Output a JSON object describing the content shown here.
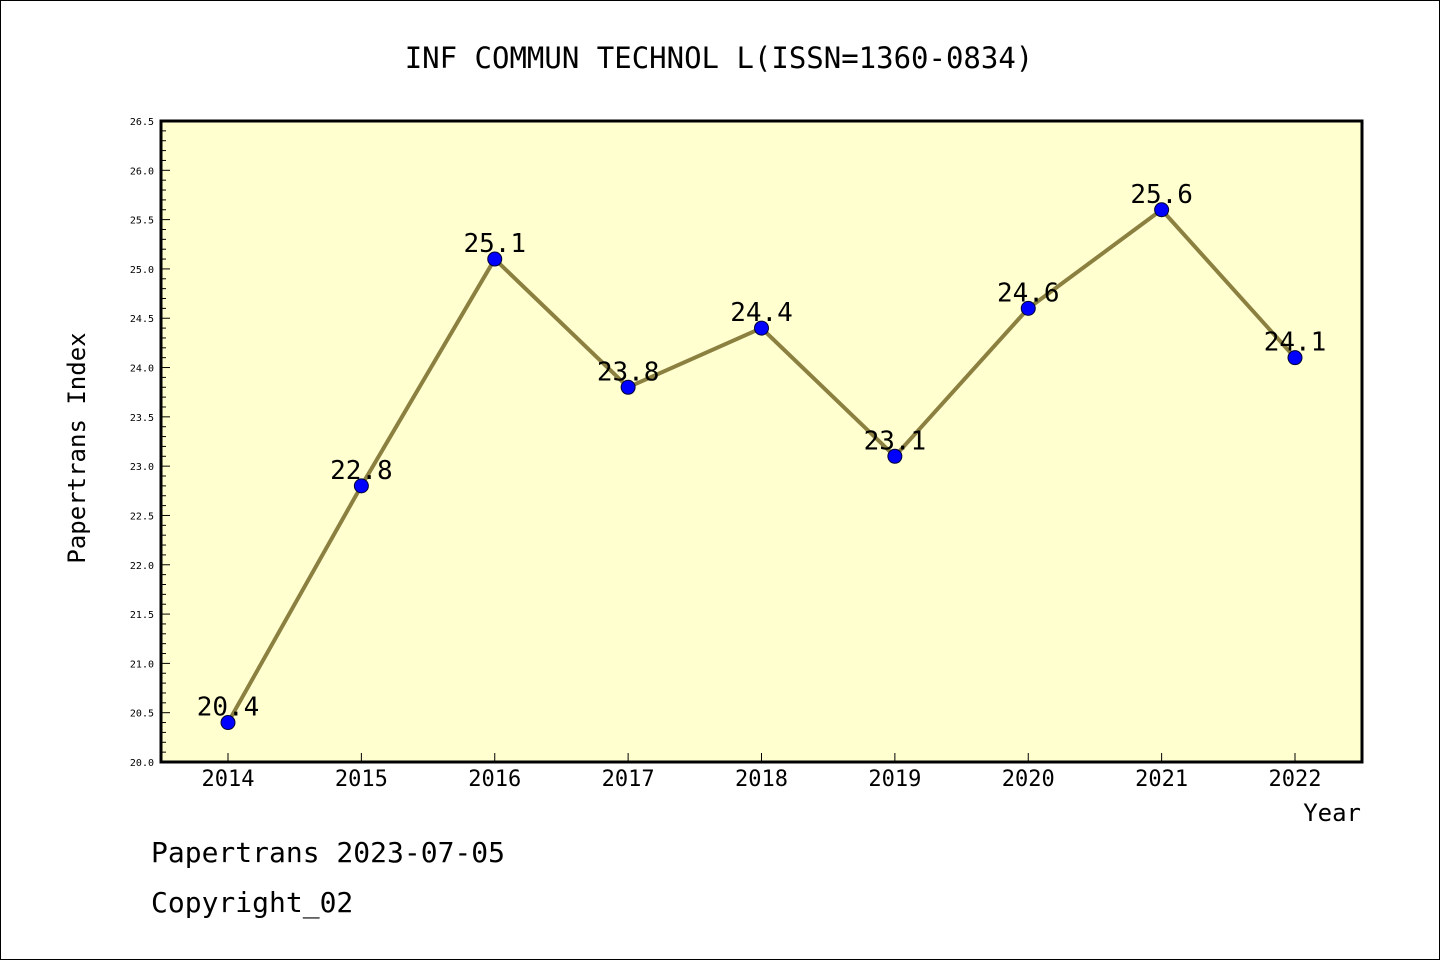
{
  "footer": {
    "line1": "Papertrans 2023-07-05",
    "line2": "Copyright_02"
  },
  "colors": {
    "plot_background": "#ffffd0",
    "line": "#8b8040",
    "marker": "#0000ff",
    "axis": "#000000"
  },
  "chart_data": {
    "type": "line",
    "title": "INF COMMUN TECHNOL L(ISSN=1360-0834)",
    "xlabel": "Year",
    "ylabel": "Papertrans Index",
    "categories": [
      "2014",
      "2015",
      "2016",
      "2017",
      "2018",
      "2019",
      "2020",
      "2021",
      "2022"
    ],
    "series": [
      {
        "values": [
          20.4,
          22.8,
          25.1,
          23.8,
          24.4,
          23.1,
          24.6,
          25.6,
          24.1
        ],
        "data_labels": [
          "20.4",
          "22.8",
          "25.1",
          "23.8",
          "24.4",
          "23.1",
          "24.6",
          "25.6",
          "24.1"
        ]
      }
    ],
    "ylim": [
      20.0,
      26.5
    ],
    "yticks": [
      "20.0",
      "20.5",
      "21.0",
      "21.5",
      "22.0",
      "22.5",
      "23.0",
      "23.5",
      "24.0",
      "24.5",
      "25.0",
      "25.5",
      "26.0",
      "26.5"
    ],
    "grid": false,
    "legend": "none"
  }
}
